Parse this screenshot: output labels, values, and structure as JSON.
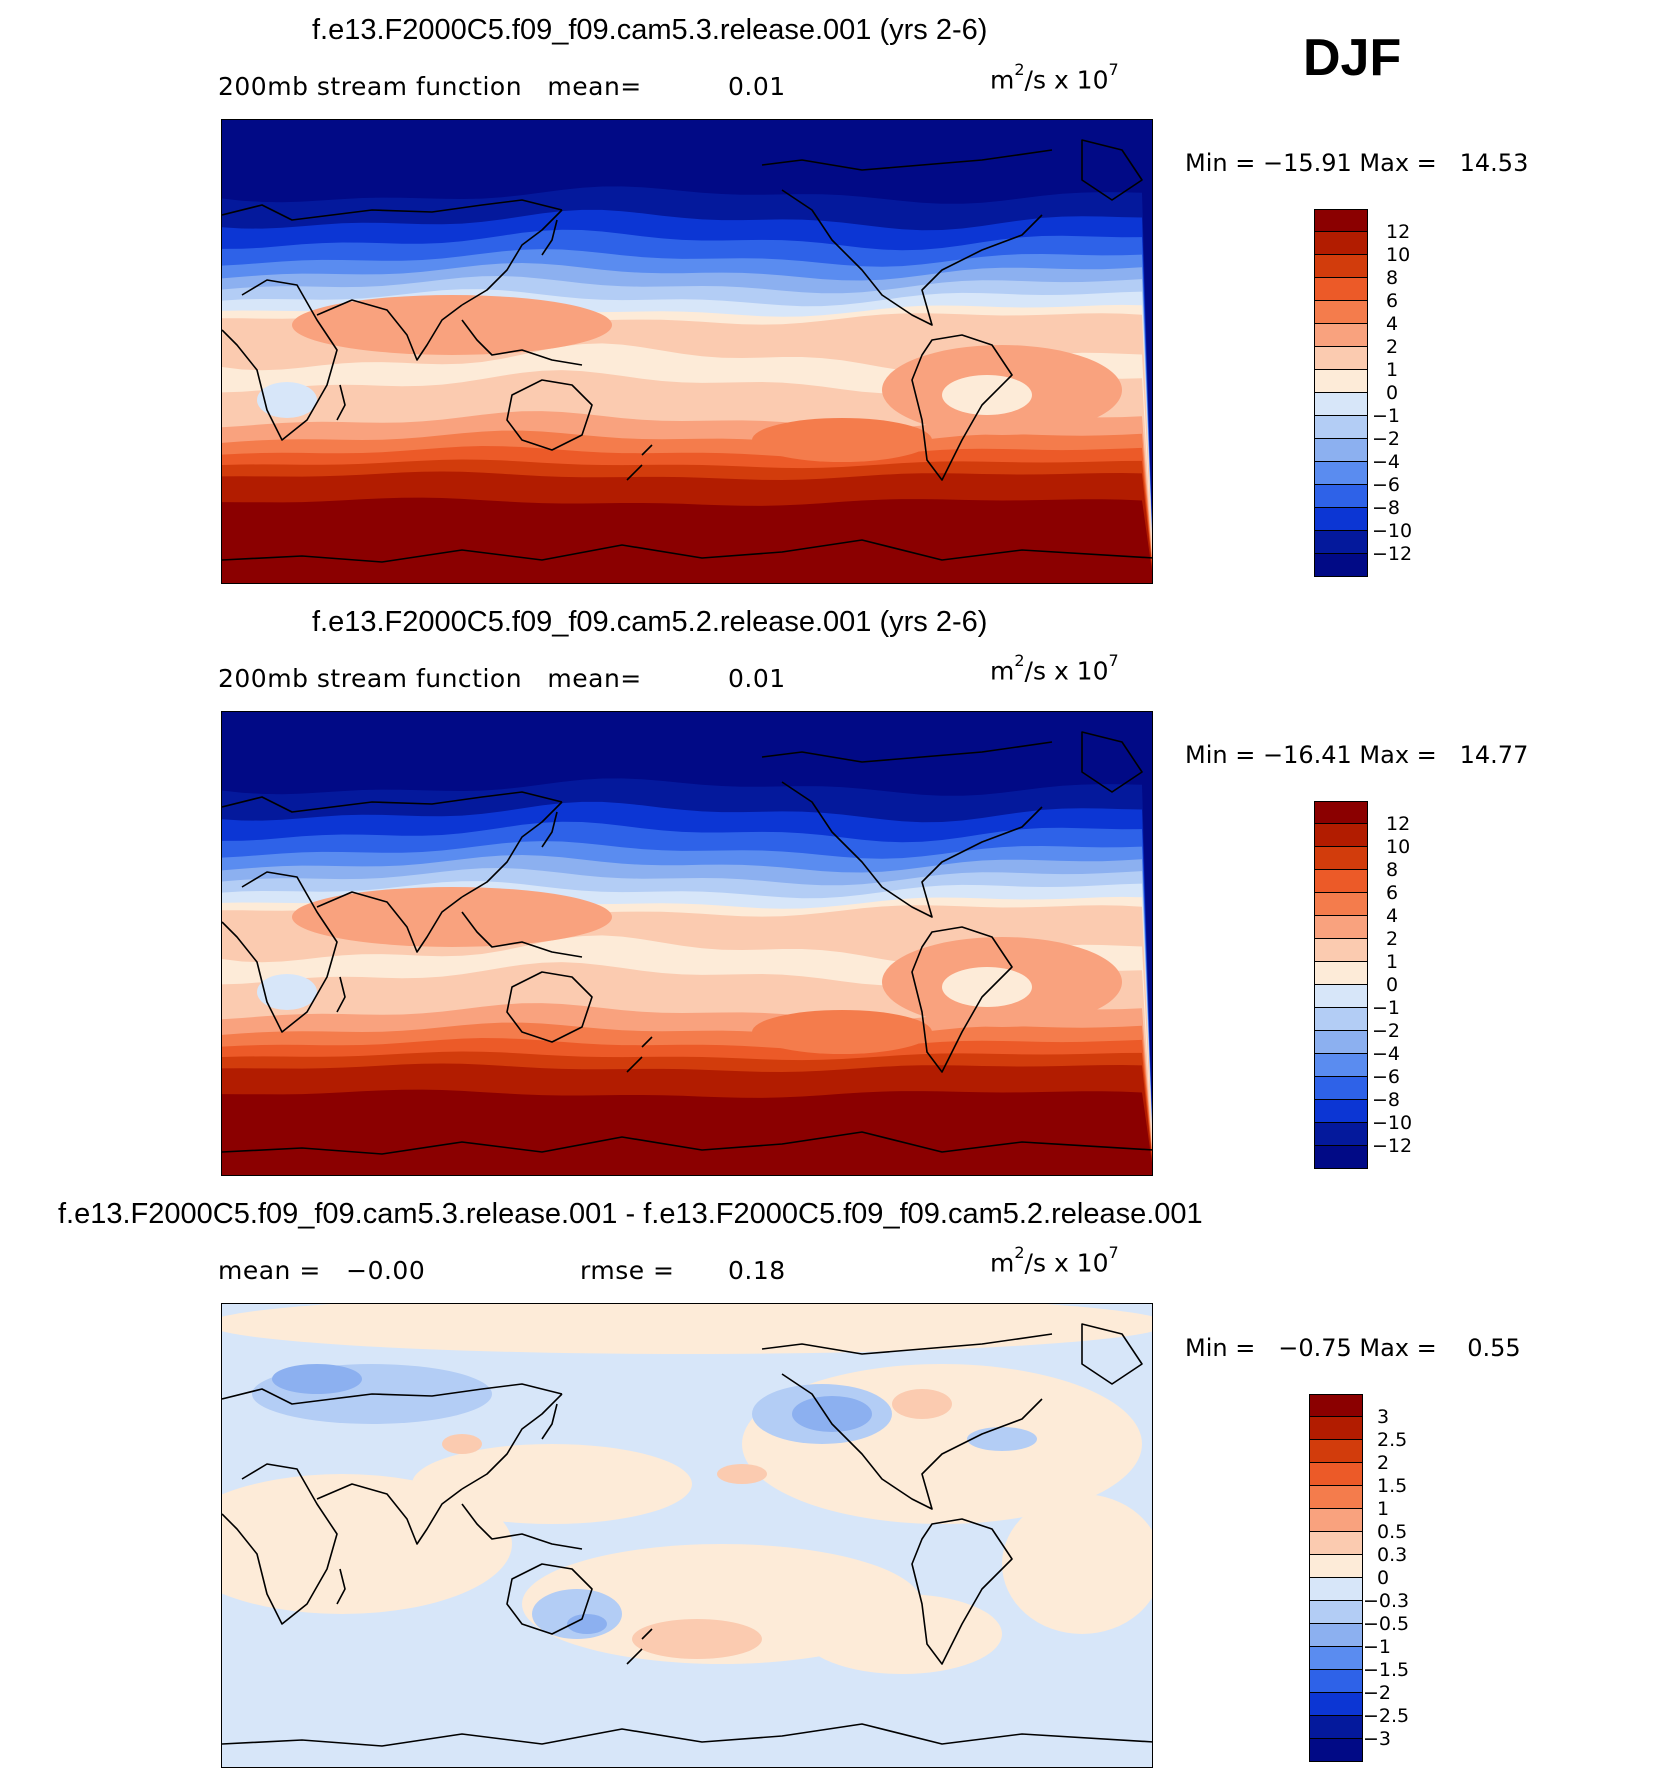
{
  "season": "DJF",
  "units": {
    "base": "m",
    "exp1": "2",
    "mid": "/s x 10",
    "exp2": "7"
  },
  "panels": [
    {
      "title": "f.e13.F2000C5.f09_f09.cam5.3.release.001 (yrs 2-6)",
      "sub_left": "200mb stream function   mean=",
      "sub_value": "0.01",
      "minmax": "Min = −15.91 Max =   14.53",
      "colorbar_labels": [
        "12",
        "10",
        "8",
        "6",
        "4",
        "2",
        "1",
        "0",
        "−1",
        "−2",
        "−4",
        "−6",
        "−8",
        "−10",
        "−12"
      ],
      "colorbar_colors": [
        "#8b0000",
        "#b21c00",
        "#d23c0c",
        "#ec5a28",
        "#f47c4c",
        "#f9a27e",
        "#fbcbb0",
        "#fdebd8",
        "#d7e6f9",
        "#b3cdf5",
        "#8cb0f0",
        "#5a8cf0",
        "#2e62e8",
        "#0c36d4",
        "#04199c",
        "#010a86"
      ],
      "map_style": "abs"
    },
    {
      "title": "f.e13.F2000C5.f09_f09.cam5.2.release.001 (yrs 2-6)",
      "sub_left": "200mb stream function   mean=",
      "sub_value": "0.01",
      "minmax": "Min = −16.41 Max =   14.77",
      "colorbar_labels": [
        "12",
        "10",
        "8",
        "6",
        "4",
        "2",
        "1",
        "0",
        "−1",
        "−2",
        "−4",
        "−6",
        "−8",
        "−10",
        "−12"
      ],
      "colorbar_colors": [
        "#8b0000",
        "#b21c00",
        "#d23c0c",
        "#ec5a28",
        "#f47c4c",
        "#f9a27e",
        "#fbcbb0",
        "#fdebd8",
        "#d7e6f9",
        "#b3cdf5",
        "#8cb0f0",
        "#5a8cf0",
        "#2e62e8",
        "#0c36d4",
        "#04199c",
        "#010a86"
      ],
      "map_style": "abs"
    },
    {
      "title": "f.e13.F2000C5.f09_f09.cam5.3.release.001 - f.e13.F2000C5.f09_f09.cam5.2.release.001",
      "sub_left": "mean =   −0.00",
      "sub_mid": "rmse =",
      "sub_value": "0.18",
      "minmax": "Min =   −0.75 Max =    0.55",
      "colorbar_labels": [
        "3",
        "2.5",
        "2",
        "1.5",
        "1",
        "0.5",
        "0.3",
        "0",
        "−0.3",
        "−0.5",
        "−1",
        "−1.5",
        "−2",
        "−2.5",
        "−3"
      ],
      "colorbar_colors": [
        "#8b0000",
        "#b21c00",
        "#d23c0c",
        "#ec5a28",
        "#f47c4c",
        "#f9a27e",
        "#fbcbb0",
        "#fdebd8",
        "#d7e6f9",
        "#b3cdf5",
        "#8cb0f0",
        "#5a8cf0",
        "#2e62e8",
        "#0c36d4",
        "#04199c",
        "#010a86"
      ],
      "map_style": "diff"
    }
  ]
}
